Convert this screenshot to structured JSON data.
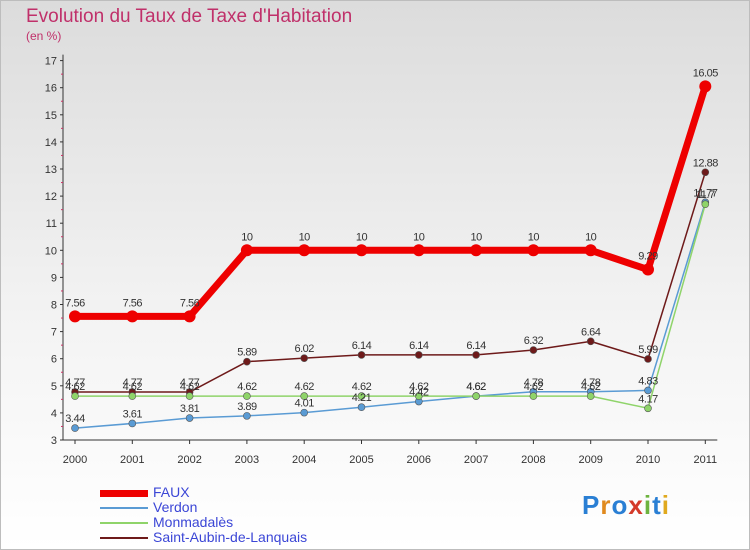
{
  "title": "Evolution du Taux de Taxe d'Habitation",
  "subtitle": "(en %)",
  "logo": {
    "letters": [
      "P",
      "r",
      "o",
      "x",
      "i",
      "t",
      "i"
    ],
    "colors": [
      "#2a7fd4",
      "#e08a1e",
      "#2a7fd4",
      "#d43a2a",
      "#6db33f",
      "#2a7fd4",
      "#e0a91e"
    ]
  },
  "chart_data": {
    "type": "line",
    "title": "Evolution du Taux de Taxe d'Habitation",
    "ylabel": "(en %)",
    "x": [
      "2000",
      "2001",
      "2002",
      "2003",
      "2004",
      "2005",
      "2006",
      "2007",
      "2008",
      "2009",
      "2010",
      "2011"
    ],
    "ylim": [
      3,
      17
    ],
    "yticks": [
      "3",
      "4",
      "5",
      "6",
      "7",
      "8",
      "9",
      "10",
      "11",
      "12",
      "13",
      "14",
      "15",
      "16",
      "17"
    ],
    "grid": false,
    "legend": "bottom-left",
    "series": [
      {
        "name": "FAUX",
        "color": "#ee0000",
        "width": 7,
        "marker": 6,
        "values": [
          7.56,
          7.56,
          7.56,
          10,
          10,
          10,
          10,
          10,
          10,
          10,
          9.29,
          16.05
        ],
        "labels": [
          "7.56",
          "7.56",
          "7.56",
          "10",
          "10",
          "10",
          "10",
          "10",
          "10",
          "10",
          "9.29",
          "16.05"
        ]
      },
      {
        "name": "Verdon",
        "color": "#5a9bd4",
        "width": 1.5,
        "marker": 3.5,
        "values": [
          3.44,
          3.61,
          3.81,
          3.89,
          4.01,
          4.21,
          4.42,
          4.62,
          4.78,
          4.78,
          4.83,
          11.77
        ],
        "labels": [
          "3.44",
          "3.61",
          "3.81",
          "3.89",
          "4.01",
          "4.21",
          "4.42",
          "4.62",
          "4.78",
          "4.78",
          "4.83",
          "11.77"
        ]
      },
      {
        "name": "Monmadalès",
        "color": "#8fd46a",
        "width": 1.5,
        "marker": 3.5,
        "values": [
          4.62,
          4.62,
          4.62,
          4.62,
          4.62,
          4.62,
          4.62,
          4.62,
          4.62,
          4.62,
          4.17,
          11.7
        ],
        "labels": [
          "4.62",
          "4.62",
          "4.62",
          "4.62",
          "4.62",
          "4.62",
          "4.62",
          "4.62",
          "4.62",
          "4.62",
          "4.17",
          "11.7"
        ]
      },
      {
        "name": "Saint-Aubin-de-Lanquais",
        "color": "#6e1a1a",
        "width": 1.5,
        "marker": 3.5,
        "values": [
          4.77,
          4.77,
          4.77,
          5.89,
          6.02,
          6.14,
          6.14,
          6.14,
          6.32,
          6.64,
          5.99,
          12.88
        ],
        "labels": [
          "4.77",
          "4.77",
          "4.77",
          "5.89",
          "6.02",
          "6.14",
          "6.14",
          "6.14",
          "6.32",
          "6.64",
          "5.99",
          "12.88"
        ]
      }
    ]
  }
}
